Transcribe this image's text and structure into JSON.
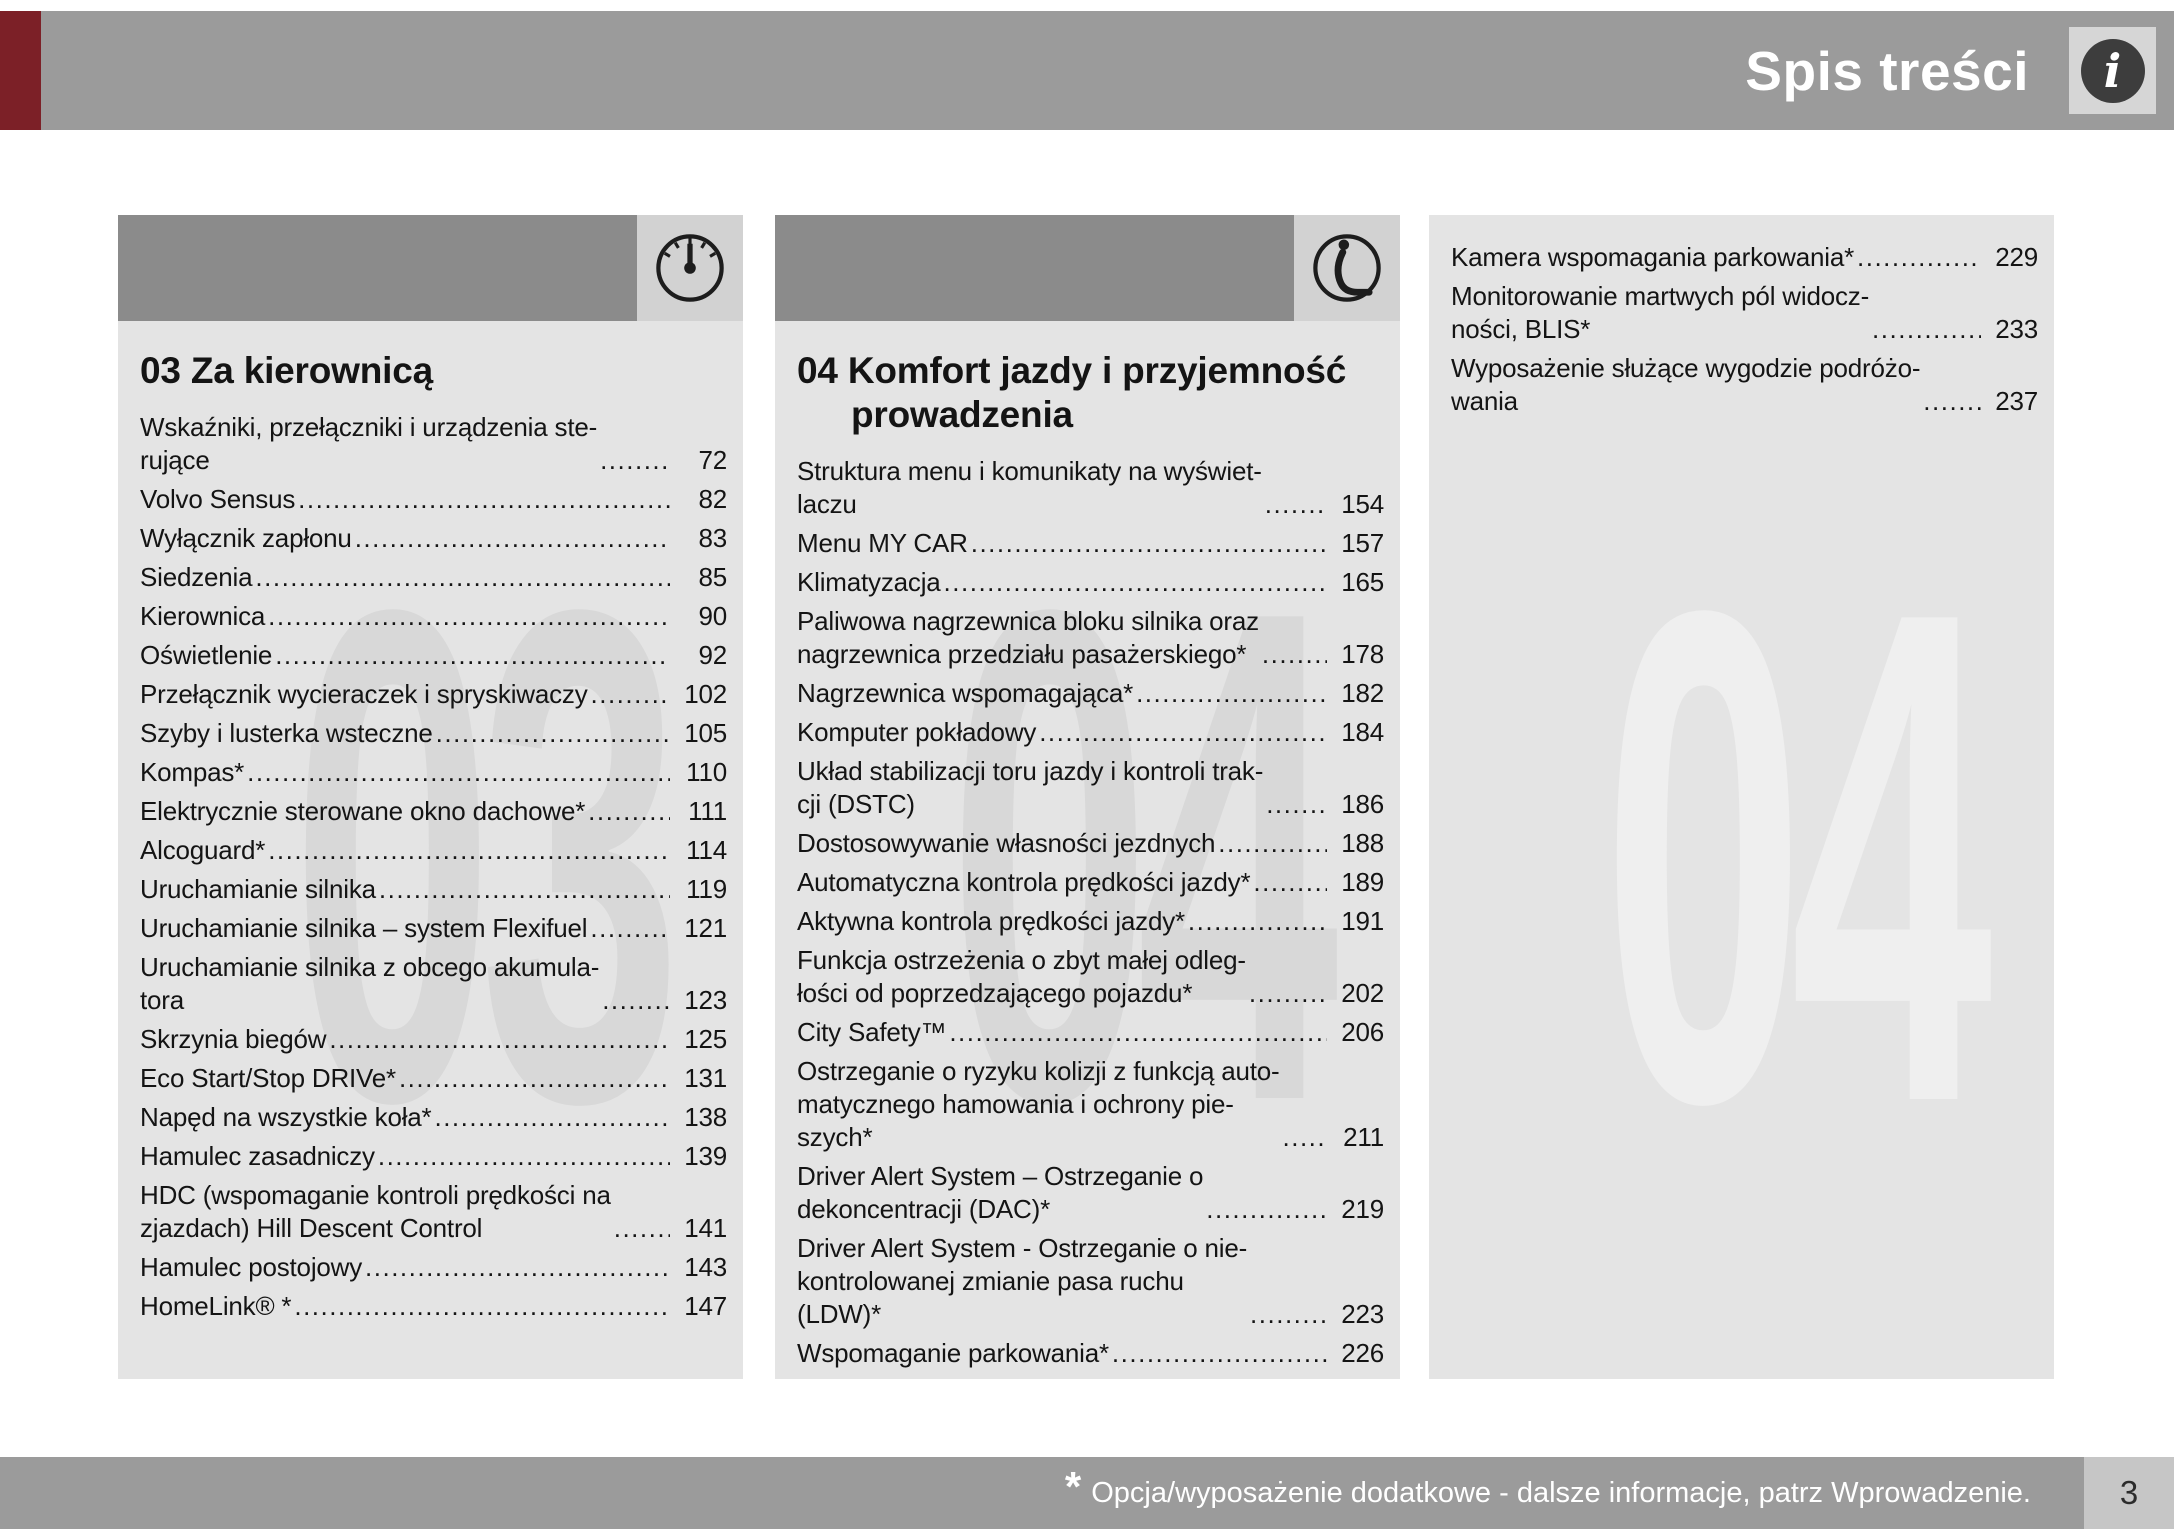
{
  "header": {
    "title": "Spis treści",
    "info_glyph": "i"
  },
  "footer": {
    "star": "*",
    "note": "Opcja/wyposażenie dodatkowe - dalsze informacje, patrz Wprowadzenie.",
    "page_number": "3"
  },
  "colors": {
    "bar_gray": "#9b9b9b",
    "accent_red": "#7c2027",
    "panel_header_gray": "#8b8b8b",
    "panel_bg": "#e4e4e4",
    "icon_tile_gray": "#d2d2d2",
    "watermark_dark": "#d8d8d8",
    "watermark_light": "#efefef",
    "text": "#141414"
  },
  "columns": [
    {
      "watermark": "03",
      "icon": "gauge-icon",
      "title": "03 Za kierownicą",
      "entries": [
        {
          "label": "Wskaźniki, przełączniki i urządzenia ste-\nrujące",
          "page": "72"
        },
        {
          "label": "Volvo Sensus",
          "page": "82"
        },
        {
          "label": "Wyłącznik zapłonu",
          "page": "83"
        },
        {
          "label": "Siedzenia",
          "page": "85"
        },
        {
          "label": "Kierownica",
          "page": "90"
        },
        {
          "label": "Oświetlenie",
          "page": "92"
        },
        {
          "label": "Przełącznik wycieraczek i spryskiwaczy",
          "page": "102"
        },
        {
          "label": "Szyby i lusterka wsteczne",
          "page": "105"
        },
        {
          "label": "Kompas*",
          "page": "110"
        },
        {
          "label": "Elektrycznie sterowane okno dachowe*",
          "page": "111"
        },
        {
          "label": "Alcoguard*",
          "page": "114"
        },
        {
          "label": "Uruchamianie silnika",
          "page": "119"
        },
        {
          "label": "Uruchamianie silnika – system Flexifuel",
          "page": "121"
        },
        {
          "label": "Uruchamianie silnika z obcego akumula-\ntora",
          "page": "123"
        },
        {
          "label": "Skrzynia biegów",
          "page": "125"
        },
        {
          "label": "Eco Start/Stop DRIVe*",
          "page": "131"
        },
        {
          "label": "Napęd na wszystkie koła*",
          "page": "138"
        },
        {
          "label": "Hamulec zasadniczy",
          "page": "139"
        },
        {
          "label": "HDC (wspomaganie kontroli prędkości na\nzjazdach) Hill Descent Control",
          "page": "141"
        },
        {
          "label": "Hamulec postojowy",
          "page": "143"
        },
        {
          "label": "HomeLink® *",
          "page": "147"
        }
      ]
    },
    {
      "watermark": "04",
      "icon": "seat-icon",
      "title": "04 Komfort jazdy i przyjemność\nprowadzenia",
      "entries": [
        {
          "label": "Struktura menu i komunikaty na wyświet-\nlaczu",
          "page": "154"
        },
        {
          "label": "Menu MY CAR",
          "page": "157"
        },
        {
          "label": "Klimatyzacja",
          "page": "165"
        },
        {
          "label": "Paliwowa nagrzewnica bloku silnika oraz\nnagrzewnica przedziału pasażerskiego*",
          "page": "178"
        },
        {
          "label": "Nagrzewnica wspomagająca*",
          "page": "182"
        },
        {
          "label": "Komputer pokładowy",
          "page": "184"
        },
        {
          "label": "Układ stabilizacji toru jazdy i kontroli trak-\ncji (DSTC)",
          "page": "186"
        },
        {
          "label": "Dostosowywanie własności jezdnych",
          "page": "188"
        },
        {
          "label": "Automatyczna kontrola prędkości jazdy*",
          "page": "189"
        },
        {
          "label": "Aktywna kontrola prędkości jazdy*",
          "page": "191"
        },
        {
          "label": "Funkcja ostrzeżenia o zbyt małej odleg-\nłości od poprzedzającego pojazdu*",
          "page": "202"
        },
        {
          "label": "City Safety™",
          "page": "206"
        },
        {
          "label": "Ostrzeganie o ryzyku kolizji z funkcją auto-\nmatycznego hamowania i ochrony pie-\nszych*",
          "page": "211"
        },
        {
          "label": "Driver Alert System – Ostrzeganie o\ndekoncentracji (DAC)*",
          "page": "219"
        },
        {
          "label": "Driver Alert System - Ostrzeganie o nie-\nkontrolowanej zmianie pasa ruchu\n(LDW)*",
          "page": "223"
        },
        {
          "label": "Wspomaganie parkowania*",
          "page": "226"
        }
      ]
    },
    {
      "watermark": "04",
      "icon": null,
      "title": null,
      "entries": [
        {
          "label": "Kamera wspomagania parkowania*",
          "page": "229"
        },
        {
          "label": "Monitorowanie martwych pól widocz-\nności, BLIS*",
          "page": "233"
        },
        {
          "label": "Wyposażenie służące wygodzie podróżo-\nwania",
          "page": "237"
        }
      ]
    }
  ]
}
